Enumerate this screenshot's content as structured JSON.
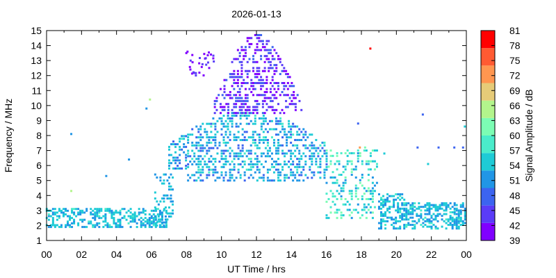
{
  "chart_data": {
    "type": "heatmap",
    "title": "2026-01-13",
    "xlabel": "UT Time / hrs",
    "ylabel": "Frequency / MHz",
    "colorbar_label": "Signal Amplitude / dB",
    "xlim": [
      0,
      24
    ],
    "ylim": [
      1,
      15
    ],
    "x_ticks": [
      "00",
      "02",
      "04",
      "06",
      "08",
      "10",
      "12",
      "14",
      "16",
      "18",
      "20",
      "22",
      "00"
    ],
    "y_ticks": [
      "1",
      "2",
      "3",
      "4",
      "5",
      "6",
      "7",
      "8",
      "9",
      "10",
      "11",
      "12",
      "13",
      "14",
      "15"
    ],
    "colorbar_ticks": [
      "39",
      "42",
      "45",
      "48",
      "51",
      "54",
      "57",
      "60",
      "63",
      "66",
      "69",
      "72",
      "75",
      "78",
      "81"
    ],
    "colorbar_colors": [
      "#8000ff",
      "#5a3cf8",
      "#3c64f0",
      "#2196e6",
      "#1ecbd6",
      "#4aeccb",
      "#7cfdb4",
      "#b3f58c",
      "#e6cb78",
      "#ff9650",
      "#ff5a32",
      "#ff0000"
    ],
    "grid": false,
    "description_bands": [
      {
        "x_range": [
          0,
          6.8
        ],
        "f_range": [
          1.8,
          3.3
        ],
        "level": "51-54"
      },
      {
        "x_range": [
          7,
          16
        ],
        "f_range": [
          5,
          10
        ],
        "level": "48-57"
      },
      {
        "x_range": [
          9.5,
          14.5
        ],
        "f_range": [
          10,
          15
        ],
        "level": "39-48"
      },
      {
        "x_range": [
          16,
          19
        ],
        "f_range": [
          2.5,
          7
        ],
        "level": "51-63"
      },
      {
        "x_range": [
          19,
          24
        ],
        "f_range": [
          1.8,
          4
        ],
        "level": "51-57"
      }
    ]
  }
}
